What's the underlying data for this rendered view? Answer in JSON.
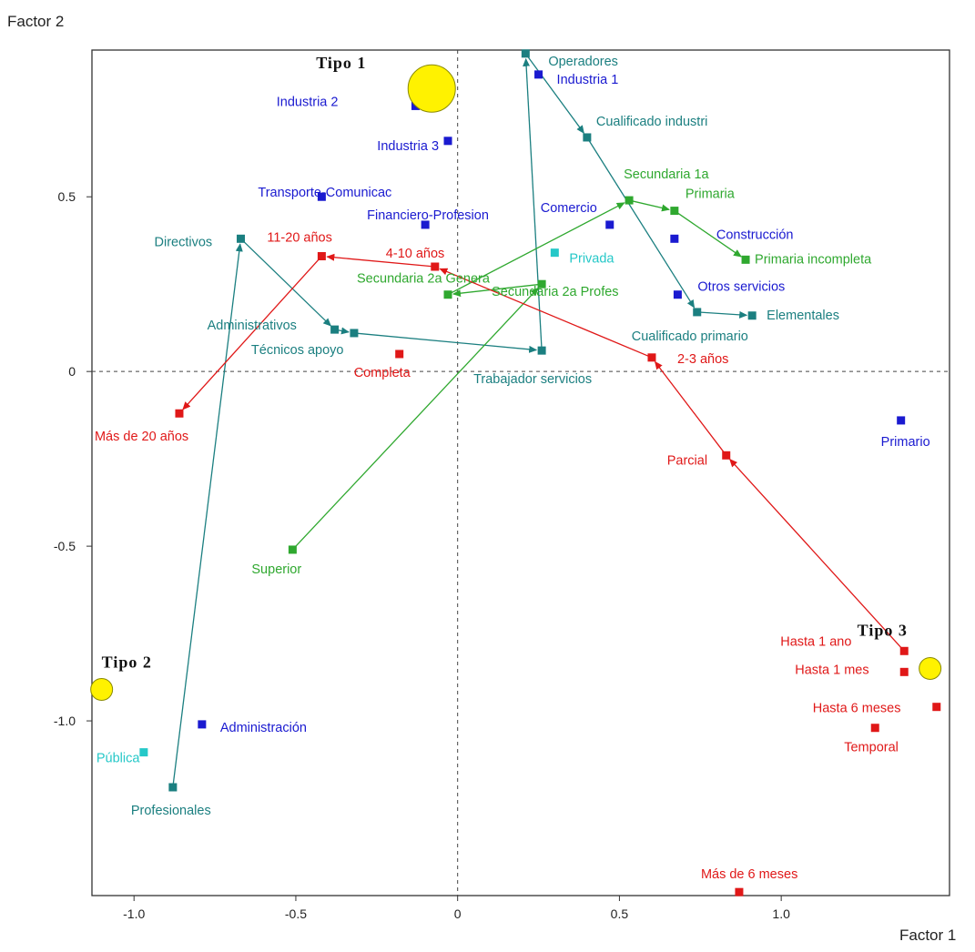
{
  "chart_data": {
    "type": "scatter",
    "xlabel": "Factor 1",
    "ylabel": "Factor 2",
    "xlim": [
      -1.13,
      1.52
    ],
    "ylim": [
      -1.5,
      0.92
    ],
    "grid": false,
    "reference_lines": {
      "x": 0,
      "y": 0,
      "style": "dashed"
    },
    "xticks": [
      {
        "value": -1.0,
        "label": "-1.0"
      },
      {
        "value": -0.5,
        "label": "-0.5"
      },
      {
        "value": 0,
        "label": "0"
      },
      {
        "value": 0.5,
        "label": "0.5"
      },
      {
        "value": 1.0,
        "label": "1.0"
      }
    ],
    "yticks": [
      {
        "value": 0.5,
        "label": "0.5"
      },
      {
        "value": 0,
        "label": "0"
      },
      {
        "value": -0.5,
        "label": "-0.5"
      },
      {
        "value": -1.0,
        "label": "-1.0"
      }
    ],
    "colors": {
      "sector": "#1a1ad0",
      "occupation": "#1b7f80",
      "education": "#2fa82f",
      "tenure": "#e01818",
      "ownership": "#25c8c8",
      "type": "#fff200"
    },
    "series": [
      {
        "group": "sector",
        "color": "#1a1ad0",
        "points": [
          {
            "label": "Industria 1",
            "x": 0.25,
            "y": 0.85
          },
          {
            "label": "Industria 2",
            "x": -0.13,
            "y": 0.76
          },
          {
            "label": "Industria 3",
            "x": -0.03,
            "y": 0.66
          },
          {
            "label": "Transporte-Comunicac",
            "x": -0.42,
            "y": 0.5
          },
          {
            "label": "Financiero-Profesion",
            "x": -0.1,
            "y": 0.42
          },
          {
            "label": "Comercio",
            "x": 0.47,
            "y": 0.42
          },
          {
            "label": "Construcción",
            "x": 0.67,
            "y": 0.38
          },
          {
            "label": "Otros servicios",
            "x": 0.68,
            "y": 0.22
          },
          {
            "label": "Primario",
            "x": 1.37,
            "y": -0.14
          },
          {
            "label": "Administración",
            "x": -0.79,
            "y": -1.01
          }
        ]
      },
      {
        "group": "occupation",
        "color": "#1b7f80",
        "path": [
          "Profesionales",
          "Directivos",
          "Administrativos",
          "Técnicos apoyo",
          "Trabajador servicios",
          "Operadores",
          "Cualificado industri",
          "Cualificado primario",
          "Elementales"
        ],
        "points": [
          {
            "label": "Operadores",
            "x": 0.21,
            "y": 0.91
          },
          {
            "label": "Cualificado industri",
            "x": 0.4,
            "y": 0.67
          },
          {
            "label": "Directivos",
            "x": -0.67,
            "y": 0.38
          },
          {
            "label": "Administrativos",
            "x": -0.38,
            "y": 0.12
          },
          {
            "label": "Técnicos apoyo",
            "x": -0.32,
            "y": 0.11
          },
          {
            "label": "Trabajador servicios",
            "x": 0.26,
            "y": 0.06
          },
          {
            "label": "Elementales",
            "x": 0.91,
            "y": 0.16
          },
          {
            "label": "Cualificado primario",
            "x": 0.74,
            "y": 0.17
          },
          {
            "label": "Profesionales",
            "x": -0.88,
            "y": -1.19
          }
        ]
      },
      {
        "group": "education",
        "color": "#2fa82f",
        "path": [
          "Superior",
          "Secundaria 2a Profes",
          "Secundaria 2a Genera",
          "Secundaria 1a",
          "Primaria",
          "Primaria incompleta"
        ],
        "points": [
          {
            "label": "Secundaria 1a",
            "x": 0.53,
            "y": 0.49
          },
          {
            "label": "Primaria",
            "x": 0.67,
            "y": 0.46
          },
          {
            "label": "Primaria incompleta",
            "x": 0.89,
            "y": 0.32
          },
          {
            "label": "Secundaria 2a Genera",
            "x": -0.03,
            "y": 0.22
          },
          {
            "label": "Secundaria 2a Profes",
            "x": 0.26,
            "y": 0.25
          },
          {
            "label": "Superior",
            "x": -0.51,
            "y": -0.51
          }
        ]
      },
      {
        "group": "tenure",
        "color": "#e01818",
        "path": [
          "Hasta 1 ano",
          "Parcial",
          "2-3 años",
          "4-10 años",
          "11-20 años",
          "Más de 20 años"
        ],
        "points": [
          {
            "label": "11-20 años",
            "x": -0.42,
            "y": 0.33
          },
          {
            "label": "4-10 años",
            "x": -0.07,
            "y": 0.3
          },
          {
            "label": "Completa",
            "x": -0.18,
            "y": 0.05
          },
          {
            "label": "2-3 años",
            "x": 0.6,
            "y": 0.04
          },
          {
            "label": "Más de 20 años",
            "x": -0.86,
            "y": -0.12
          },
          {
            "label": "Parcial",
            "x": 0.83,
            "y": -0.24
          },
          {
            "label": "Hasta 1 ano",
            "x": 1.38,
            "y": -0.8
          },
          {
            "label": "Hasta 1 mes",
            "x": 1.38,
            "y": -0.86
          },
          {
            "label": "Hasta 6 meses",
            "x": 1.48,
            "y": -0.96
          },
          {
            "label": "Temporal",
            "x": 1.29,
            "y": -1.02
          },
          {
            "label": "Más de 6 meses",
            "x": 0.87,
            "y": -1.49
          }
        ]
      },
      {
        "group": "ownership",
        "color": "#25c8c8",
        "points": [
          {
            "label": "Privada",
            "x": 0.3,
            "y": 0.34
          },
          {
            "label": "Pública",
            "x": -0.97,
            "y": -1.09
          }
        ]
      }
    ],
    "types": [
      {
        "label": "Tipo 1",
        "x": -0.08,
        "y": 0.81,
        "size": "large"
      },
      {
        "label": "Tipo 2",
        "x": -1.1,
        "y": -0.91,
        "size": "small"
      },
      {
        "label": "Tipo 3",
        "x": 1.46,
        "y": -0.85,
        "size": "small"
      }
    ]
  }
}
